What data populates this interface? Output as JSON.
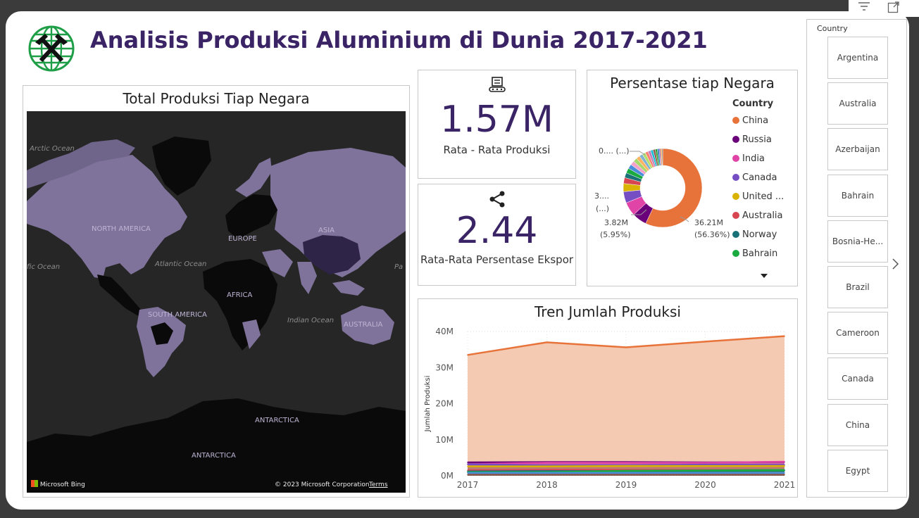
{
  "header": {
    "title": "Analisis Produksi Aluminium di Dunia 2017-2021",
    "logo_icon": "mining-globe-icon"
  },
  "map_panel": {
    "title": "Total Produksi Tiap Negara",
    "labels": {
      "arctic": "Arctic Ocean",
      "north_america": "NORTH AMERICA",
      "atlantic": "Atlantic Ocean",
      "pacific_left": "fic Ocean",
      "pacific_right": "Pa",
      "europe": "EUROPE",
      "asia": "ASIA",
      "africa": "AFRICA",
      "south_america": "SOUTH AMERICA",
      "indian": "Indian Ocean",
      "australia": "AUSTRALIA",
      "antarctica1": "ANTARCTICA",
      "antarctica2": "ANTARCTICA"
    },
    "footer_left": "Microsoft Bing",
    "footer_right": "© 2023 Microsoft Corporation",
    "footer_terms": "Terms"
  },
  "kpi1": {
    "icon": "conveyor-machine-icon",
    "value": "1.57M",
    "label": "Rata - Rata Produksi"
  },
  "kpi2": {
    "icon": "share-icon",
    "value": "2.44",
    "label": "Rata-Rata Persentase Ekspor"
  },
  "donut": {
    "title": "Persentase tiap Negara",
    "legend_title": "Country",
    "legend": [
      {
        "name": "China",
        "color": "#E8733A"
      },
      {
        "name": "Russia",
        "color": "#6B007B"
      },
      {
        "name": "India",
        "color": "#E044A7"
      },
      {
        "name": "Canada",
        "color": "#744EC2"
      },
      {
        "name": "United ...",
        "color": "#D9B300"
      },
      {
        "name": "Australia",
        "color": "#D64550"
      },
      {
        "name": "Norway",
        "color": "#197278"
      },
      {
        "name": "Bahrain",
        "color": "#1AAB40"
      }
    ],
    "labels": {
      "china_val": "36.21M",
      "china_pct": "(56.36%)",
      "russia_val": "3.82M",
      "russia_pct": "(5.95%)",
      "small_a": "3....",
      "small_b": "(...)",
      "small_c": "0.... (...)"
    }
  },
  "trend": {
    "title": "Tren Jumlah Produksi",
    "ylabel": "Jumlah Produksi"
  },
  "chart_data": [
    {
      "type": "pie",
      "title": "Persentase tiap Negara",
      "slices": [
        {
          "name": "China",
          "pct": 56.36,
          "color": "#E8733A"
        },
        {
          "name": "Russia",
          "pct": 5.95,
          "color": "#6B007B"
        },
        {
          "name": "India",
          "pct": 5.6,
          "color": "#E044A7"
        },
        {
          "name": "Canada",
          "pct": 4.6,
          "color": "#744EC2"
        },
        {
          "name": "United ...",
          "pct": 3.3,
          "color": "#D9B300"
        },
        {
          "name": "Australia",
          "pct": 2.4,
          "color": "#D64550"
        },
        {
          "name": "Norway",
          "pct": 2.0,
          "color": "#197278"
        },
        {
          "name": "Bahrain",
          "pct": 2.0,
          "color": "#1AAB40"
        },
        {
          "name": "",
          "pct": 1.8,
          "color": "#4A8DDC"
        },
        {
          "name": "",
          "pct": 1.7,
          "color": "#F2A2C8"
        },
        {
          "name": "",
          "pct": 1.6,
          "color": "#A6D96A"
        },
        {
          "name": "",
          "pct": 1.5,
          "color": "#FDB462"
        },
        {
          "name": "",
          "pct": 1.4,
          "color": "#80B1D3"
        },
        {
          "name": "",
          "pct": 1.3,
          "color": "#B3DE69"
        },
        {
          "name": "",
          "pct": 1.2,
          "color": "#FB8072"
        },
        {
          "name": "",
          "pct": 1.1,
          "color": "#BC80BD"
        },
        {
          "name": "",
          "pct": 1.0,
          "color": "#17BECF"
        },
        {
          "name": "",
          "pct": 0.9,
          "color": "#8C564B"
        },
        {
          "name": "",
          "pct": 0.8,
          "color": "#2CA02C"
        },
        {
          "name": "",
          "pct": 0.7,
          "color": "#1F77B4"
        },
        {
          "name": "",
          "pct": 0.6,
          "color": "#9467BD"
        },
        {
          "name": "",
          "pct": 0.5,
          "color": "#FF7F0E"
        },
        {
          "name": "",
          "pct": 0.4,
          "color": "#7F7F7F"
        }
      ]
    },
    {
      "type": "area",
      "title": "Tren Jumlah Produksi",
      "xlabel": "",
      "ylabel": "Jumlah Produksi",
      "x": [
        2017,
        2018,
        2019,
        2020,
        2021
      ],
      "ylim": [
        0,
        40000000
      ],
      "yticks": [
        "0M",
        "10M",
        "20M",
        "30M",
        "40M"
      ],
      "ytick_values": [
        0,
        10000000,
        20000000,
        30000000,
        40000000
      ],
      "series": [
        {
          "name": "China",
          "color": "#E8733A",
          "fill": "#F4C4AA",
          "values": [
            33500000,
            37000000,
            35600000,
            37200000,
            38700000
          ]
        },
        {
          "name": "Russia",
          "color": "#6B007B",
          "values": [
            3700000,
            3800000,
            3800000,
            3700000,
            3800000
          ]
        },
        {
          "name": "India",
          "color": "#E044A7",
          "values": [
            3200000,
            3600000,
            3600000,
            3600000,
            3900000
          ]
        },
        {
          "name": "Canada",
          "color": "#744EC2",
          "values": [
            3200000,
            2900000,
            2900000,
            3100000,
            3000000
          ]
        },
        {
          "name": "United ...",
          "color": "#D9B300",
          "values": [
            2600000,
            2600000,
            2700000,
            2700000,
            2700000
          ]
        },
        {
          "name": "Australia",
          "color": "#D64550",
          "values": [
            1500000,
            1600000,
            1600000,
            1600000,
            1600000
          ]
        },
        {
          "name": "Norway",
          "color": "#197278",
          "values": [
            1200000,
            1300000,
            1300000,
            1300000,
            1400000
          ]
        },
        {
          "name": "Bahrain",
          "color": "#1AAB40",
          "values": [
            1000000,
            1000000,
            1400000,
            1500000,
            1600000
          ]
        },
        {
          "name": "",
          "color": "#4A8DDC",
          "values": [
            800000,
            800000,
            800000,
            800000,
            800000
          ]
        },
        {
          "name": "",
          "color": "#8C564B",
          "values": [
            300000,
            300000,
            300000,
            300000,
            300000
          ]
        }
      ]
    }
  ],
  "slicer": {
    "title": "Country",
    "items": [
      "Argentina",
      "Australia",
      "Azerbaijan",
      "Bahrain",
      "Bosnia-He...",
      "Brazil",
      "Cameroon",
      "Canada",
      "China",
      "Egypt"
    ],
    "next_icon": "chevron-right-icon",
    "filter_icon": "filter-icon",
    "expand_icon": "expand-icon",
    "more_icon": "caret-down-icon"
  }
}
